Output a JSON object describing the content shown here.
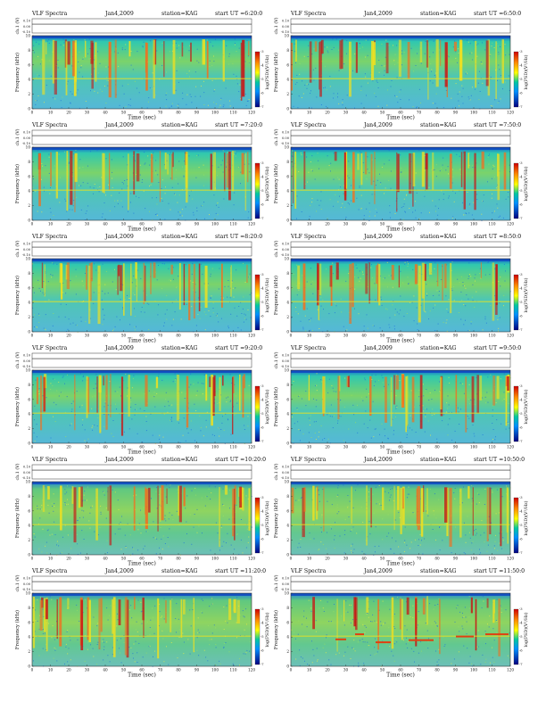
{
  "figure": {
    "panel_header": {
      "left": "VLF Spectra",
      "date": "Jan4,2009",
      "station": "station=KAG",
      "start_prefix": "start UT ="
    },
    "labels": {
      "channel_label": "ch.1 (V)",
      "freq_label": "Frequency (kHz)",
      "time_label": "Time (sec)",
      "colorbar_label": "log(PSD)(V²/Hz)"
    }
  },
  "chart_data": [
    {
      "type": "heatmap",
      "start_ut": "6:20:0",
      "variant": "A",
      "xlim": [
        0,
        120
      ],
      "ylim": [
        0,
        10
      ],
      "x_ticks": [
        "0",
        "10",
        "20",
        "30",
        "40",
        "50",
        "60",
        "70",
        "80",
        "90",
        "100",
        "110",
        "120"
      ],
      "y_ticks": [
        "0",
        "2",
        "4",
        "6",
        "8",
        "10"
      ],
      "channel_ticks": [
        "0.10",
        "0.00",
        "-0.10"
      ],
      "colorbar_ticks": [
        "-3",
        "-4",
        "-5",
        "-6",
        "-7"
      ]
    },
    {
      "type": "heatmap",
      "start_ut": "6:50:0",
      "variant": "A",
      "xlim": [
        0,
        120
      ],
      "ylim": [
        0,
        10
      ],
      "x_ticks": [
        "0",
        "10",
        "20",
        "30",
        "40",
        "50",
        "60",
        "70",
        "80",
        "90",
        "100",
        "110",
        "120"
      ],
      "y_ticks": [
        "0",
        "2",
        "4",
        "6",
        "8",
        "10"
      ],
      "channel_ticks": [
        "0.10",
        "0.00",
        "-0.10"
      ],
      "colorbar_ticks": [
        "-3",
        "-4",
        "-5",
        "-6",
        "-7"
      ]
    },
    {
      "type": "heatmap",
      "start_ut": "7:20:0",
      "variant": "A",
      "xlim": [
        0,
        120
      ],
      "ylim": [
        0,
        10
      ],
      "x_ticks": [
        "0",
        "10",
        "20",
        "30",
        "40",
        "50",
        "60",
        "70",
        "80",
        "90",
        "100",
        "110",
        "120"
      ],
      "y_ticks": [
        "0",
        "2",
        "4",
        "6",
        "8",
        "10"
      ],
      "channel_ticks": [
        "0.10",
        "0.00",
        "-0.10"
      ],
      "colorbar_ticks": [
        "-3",
        "-4",
        "-5",
        "-6",
        "-7"
      ]
    },
    {
      "type": "heatmap",
      "start_ut": "7:50:0",
      "variant": "A",
      "xlim": [
        0,
        120
      ],
      "ylim": [
        0,
        10
      ],
      "x_ticks": [
        "0",
        "10",
        "20",
        "30",
        "40",
        "50",
        "60",
        "70",
        "80",
        "90",
        "100",
        "110",
        "120"
      ],
      "y_ticks": [
        "0",
        "2",
        "4",
        "6",
        "8",
        "10"
      ],
      "channel_ticks": [
        "0.10",
        "0.00",
        "-0.10"
      ],
      "colorbar_ticks": [
        "-3",
        "-4",
        "-5",
        "-6",
        "-7"
      ]
    },
    {
      "type": "heatmap",
      "start_ut": "8:20:0",
      "variant": "A",
      "xlim": [
        0,
        120
      ],
      "ylim": [
        0,
        10
      ],
      "x_ticks": [
        "0",
        "10",
        "20",
        "30",
        "40",
        "50",
        "60",
        "70",
        "80",
        "90",
        "100",
        "110",
        "120"
      ],
      "y_ticks": [
        "0",
        "2",
        "4",
        "6",
        "8",
        "10"
      ],
      "channel_ticks": [
        "0.10",
        "0.00",
        "-0.10"
      ],
      "colorbar_ticks": [
        "-3",
        "-4",
        "-5",
        "-6",
        "-7"
      ]
    },
    {
      "type": "heatmap",
      "start_ut": "8:50:0",
      "variant": "A",
      "xlim": [
        0,
        120
      ],
      "ylim": [
        0,
        10
      ],
      "x_ticks": [
        "0",
        "10",
        "20",
        "30",
        "40",
        "50",
        "60",
        "70",
        "80",
        "90",
        "100",
        "110",
        "120"
      ],
      "y_ticks": [
        "0",
        "2",
        "4",
        "6",
        "8",
        "10"
      ],
      "channel_ticks": [
        "0.10",
        "0.00",
        "-0.10"
      ],
      "colorbar_ticks": [
        "-3",
        "-4",
        "-5",
        "-6",
        "-7"
      ]
    },
    {
      "type": "heatmap",
      "start_ut": "9:20:0",
      "variant": "A",
      "xlim": [
        0,
        120
      ],
      "ylim": [
        0,
        10
      ],
      "x_ticks": [
        "0",
        "10",
        "20",
        "30",
        "40",
        "50",
        "60",
        "70",
        "80",
        "90",
        "100",
        "110",
        "120"
      ],
      "y_ticks": [
        "0",
        "2",
        "4",
        "6",
        "8",
        "10"
      ],
      "channel_ticks": [
        "0.10",
        "0.00",
        "-0.10"
      ],
      "colorbar_ticks": [
        "-3",
        "-4",
        "-5",
        "-6",
        "-7"
      ]
    },
    {
      "type": "heatmap",
      "start_ut": "9:50:0",
      "variant": "A",
      "xlim": [
        0,
        120
      ],
      "ylim": [
        0,
        10
      ],
      "x_ticks": [
        "0",
        "10",
        "20",
        "30",
        "40",
        "50",
        "60",
        "70",
        "80",
        "90",
        "100",
        "110",
        "120"
      ],
      "y_ticks": [
        "0",
        "2",
        "4",
        "6",
        "8",
        "10"
      ],
      "channel_ticks": [
        "0.10",
        "0.00",
        "-0.10"
      ],
      "colorbar_ticks": [
        "-3",
        "-4",
        "-5",
        "-6",
        "-7"
      ]
    },
    {
      "type": "heatmap",
      "start_ut": "10:20:0",
      "variant": "B",
      "xlim": [
        0,
        120
      ],
      "ylim": [
        0,
        10
      ],
      "x_ticks": [
        "0",
        "10",
        "20",
        "30",
        "40",
        "50",
        "60",
        "70",
        "80",
        "90",
        "100",
        "110",
        "120"
      ],
      "y_ticks": [
        "0",
        "2",
        "4",
        "6",
        "8",
        "10"
      ],
      "channel_ticks": [
        "0.10",
        "0.00",
        "-0.10"
      ],
      "colorbar_ticks": [
        "-3",
        "-4",
        "-5",
        "-6",
        "-7"
      ]
    },
    {
      "type": "heatmap",
      "start_ut": "10:50:0",
      "variant": "B",
      "xlim": [
        0,
        120
      ],
      "ylim": [
        0,
        10
      ],
      "x_ticks": [
        "0",
        "10",
        "20",
        "30",
        "40",
        "50",
        "60",
        "70",
        "80",
        "90",
        "100",
        "110",
        "120"
      ],
      "y_ticks": [
        "0",
        "2",
        "4",
        "6",
        "8",
        "10"
      ],
      "channel_ticks": [
        "0.10",
        "0.00",
        "-0.10"
      ],
      "colorbar_ticks": [
        "-3",
        "-4",
        "-5",
        "-6",
        "-7"
      ]
    },
    {
      "type": "heatmap",
      "start_ut": "11:20:0",
      "variant": "B",
      "xlim": [
        0,
        120
      ],
      "ylim": [
        0,
        10
      ],
      "x_ticks": [
        "0",
        "10",
        "20",
        "30",
        "40",
        "50",
        "60",
        "70",
        "80",
        "90",
        "100",
        "110",
        "120"
      ],
      "y_ticks": [
        "0",
        "2",
        "4",
        "6",
        "8",
        "10"
      ],
      "channel_ticks": [
        "0.10",
        "0.00",
        "-0.10"
      ],
      "colorbar_ticks": [
        "-3",
        "-4",
        "-5",
        "-6",
        "-7"
      ]
    },
    {
      "type": "heatmap",
      "start_ut": "11:50:0",
      "variant": "C",
      "xlim": [
        0,
        120
      ],
      "ylim": [
        0,
        10
      ],
      "x_ticks": [
        "0",
        "10",
        "20",
        "30",
        "40",
        "50",
        "60",
        "70",
        "80",
        "90",
        "100",
        "110",
        "120"
      ],
      "y_ticks": [
        "0",
        "2",
        "4",
        "6",
        "8",
        "10"
      ],
      "channel_ticks": [
        "0.10",
        "0.00",
        "-0.10"
      ],
      "colorbar_ticks": [
        "-3",
        "-4",
        "-5",
        "-6",
        "-7"
      ]
    }
  ]
}
